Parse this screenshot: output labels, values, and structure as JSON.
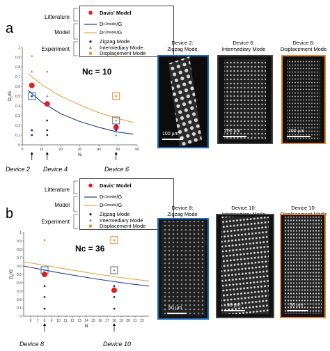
{
  "panel_a": {
    "letter": "a",
    "legend": {
      "categories": [
        "Litterature",
        "Model",
        "Experiment"
      ],
      "items": [
        "Davis' Model",
        "D",
        "c1",
        "model",
        "/G",
        "D",
        "c2",
        "model",
        "/G",
        "Zigzag Mode",
        "Intermediary Mode",
        "Displacement Mode"
      ]
    },
    "nc_label": "Nc = 10",
    "device_labels": [
      "Device 2",
      "Device 4",
      "Device 6"
    ],
    "images": [
      {
        "caption_line1": "Device 2:",
        "caption_line2": "Zigzag Mode",
        "scale": "100 µm",
        "border": "#1f6db8"
      },
      {
        "caption_line1": "Device 6:",
        "caption_line2": "Intermediary Mode",
        "scale": "200 µm",
        "border": "#444444"
      },
      {
        "caption_line1": "Device 6:",
        "caption_line2": "Displacement Mode",
        "scale": "200 µm",
        "border": "#e8852a"
      }
    ]
  },
  "panel_b": {
    "letter": "b",
    "legend": {
      "categories": [
        "Litterature",
        "Model",
        "Experiment"
      ],
      "items": [
        "Davis' Model",
        "D",
        "c1",
        "model",
        "/G",
        "D",
        "c2",
        "model",
        "/G",
        "Zigzag Mode",
        "Intermediary Mode",
        "Displacement Mode"
      ]
    },
    "nc_label": "Nc = 36",
    "device_labels": [
      "Device 8",
      "Device 10"
    ],
    "images": [
      {
        "caption_line1": "Device 8:",
        "caption_line2": "Zigzag Mode",
        "scale": "50 µm",
        "border": "#1f6db8"
      },
      {
        "caption_line1": "Device 10:",
        "caption_line2": "Intermediary Mode",
        "scale": "50 µm",
        "border": "#444444"
      },
      {
        "caption_line1": "Device 10:",
        "caption_line2": "Displacement Mode",
        "scale": "50 µm",
        "border": "#e8852a"
      }
    ]
  },
  "colors": {
    "davis": "#e02020",
    "c1": "#2c3e8c",
    "c2": "#f0a040",
    "zigzag": "#1a237e",
    "intermediary": "#7a8ca8",
    "displacement": "#f08a24"
  },
  "chart_data": [
    {
      "type": "scatter",
      "title": "",
      "xlabel": "N",
      "ylabel": "D",
      "ylabel_sub": "c",
      "ylabel_tail": "/G",
      "xlim": [
        0,
        60
      ],
      "ylim": [
        0,
        1
      ],
      "xticks": [
        "0",
        "10",
        "20",
        "30",
        "40",
        "50",
        "60"
      ],
      "yticks": [
        "0",
        "0.1",
        "0.2",
        "0.3",
        "0.4",
        "0.5",
        "0.6",
        "0.7",
        "0.8",
        "0.9",
        "1"
      ],
      "series": [
        {
          "name": "Davis' Model",
          "kind": "marker",
          "points": [
            [
              5,
              0.61
            ],
            [
              13,
              0.42
            ],
            [
              49,
              0.18
            ]
          ]
        },
        {
          "name": "Zigzag Mode",
          "kind": "marker",
          "points": [
            [
              5,
              0.5
            ],
            [
              5,
              0.15
            ],
            [
              5,
              0.1
            ],
            [
              13,
              0.25
            ],
            [
              13,
              0.15
            ],
            [
              13,
              0.1
            ],
            [
              49,
              0.2
            ],
            [
              49,
              0.15
            ]
          ]
        },
        {
          "name": "Intermediary Mode",
          "kind": "marker",
          "points": [
            [
              5,
              0.75
            ],
            [
              13,
              0.5
            ],
            [
              49,
              0.25
            ],
            [
              49,
              0.1
            ]
          ]
        },
        {
          "name": "Displacement Mode",
          "kind": "marker",
          "points": [
            [
              5,
              0.91
            ],
            [
              13,
              0.75
            ],
            [
              49,
              0.91
            ],
            [
              49,
              0.5
            ]
          ]
        },
        {
          "name": "Dc1/G",
          "kind": "line",
          "points": [
            [
              3,
              0.56
            ],
            [
              10,
              0.44
            ],
            [
              20,
              0.32
            ],
            [
              30,
              0.24
            ],
            [
              40,
              0.18
            ],
            [
              50,
              0.13
            ],
            [
              58,
              0.11
            ]
          ]
        },
        {
          "name": "Dc2/G",
          "kind": "line",
          "points": [
            [
              3,
              0.73
            ],
            [
              10,
              0.62
            ],
            [
              20,
              0.5
            ],
            [
              30,
              0.41
            ],
            [
              40,
              0.33
            ],
            [
              50,
              0.27
            ],
            [
              58,
              0.23
            ]
          ]
        }
      ],
      "boxes": [
        {
          "x": 5,
          "y": 0.5,
          "color": "#1f6db8"
        },
        {
          "x": 49,
          "y": 0.25,
          "color": "#666666"
        },
        {
          "x": 49,
          "y": 0.5,
          "color": "#e8852a"
        }
      ],
      "arrows_x": [
        5,
        13,
        49
      ]
    },
    {
      "type": "scatter",
      "title": "",
      "xlabel": "N",
      "ylabel": "D",
      "ylabel_sub": "c",
      "ylabel_tail": "/G",
      "xlim": [
        5,
        23
      ],
      "ylim": [
        0,
        1
      ],
      "xticks": [
        "6",
        "7",
        "8",
        "9",
        "10",
        "11",
        "12",
        "13",
        "14",
        "15",
        "16",
        "17",
        "18",
        "19",
        "20",
        "21",
        "22"
      ],
      "yticks": [
        "0",
        "0.1",
        "0.2",
        "0.3",
        "0.4",
        "0.5",
        "0.6",
        "0.7",
        "0.8",
        "0.9",
        "1"
      ],
      "series": [
        {
          "name": "Davis' Model",
          "kind": "marker",
          "points": [
            [
              8,
              0.5
            ],
            [
              18,
              0.31
            ]
          ]
        },
        {
          "name": "Zigzag Mode",
          "kind": "marker",
          "points": [
            [
              8,
              0.55
            ],
            [
              8,
              0.36
            ],
            [
              8,
              0.23
            ],
            [
              8,
              0.09
            ],
            [
              18,
              0.36
            ],
            [
              18,
              0.23
            ],
            [
              18,
              0.09
            ]
          ]
        },
        {
          "name": "Intermediary Mode",
          "kind": "marker",
          "points": [
            [
              8,
              0.55
            ],
            [
              18,
              0.55
            ]
          ]
        },
        {
          "name": "Displacement Mode",
          "kind": "marker",
          "points": [
            [
              8,
              0.91
            ],
            [
              18,
              0.91
            ]
          ]
        },
        {
          "name": "Dc1/G",
          "kind": "line",
          "points": [
            [
              5,
              0.6
            ],
            [
              10,
              0.52
            ],
            [
              15,
              0.45
            ],
            [
              20,
              0.39
            ],
            [
              23,
              0.36
            ]
          ]
        },
        {
          "name": "Dc2/G",
          "kind": "line",
          "points": [
            [
              5,
              0.65
            ],
            [
              10,
              0.58
            ],
            [
              15,
              0.51
            ],
            [
              20,
              0.45
            ],
            [
              23,
              0.42
            ]
          ]
        }
      ],
      "boxes": [
        {
          "x": 8,
          "y": 0.55,
          "color": "#1f6db8"
        },
        {
          "x": 18,
          "y": 0.55,
          "color": "#666666"
        },
        {
          "x": 18,
          "y": 0.91,
          "color": "#e8852a"
        }
      ],
      "arrows_x": [
        8,
        18
      ]
    }
  ]
}
